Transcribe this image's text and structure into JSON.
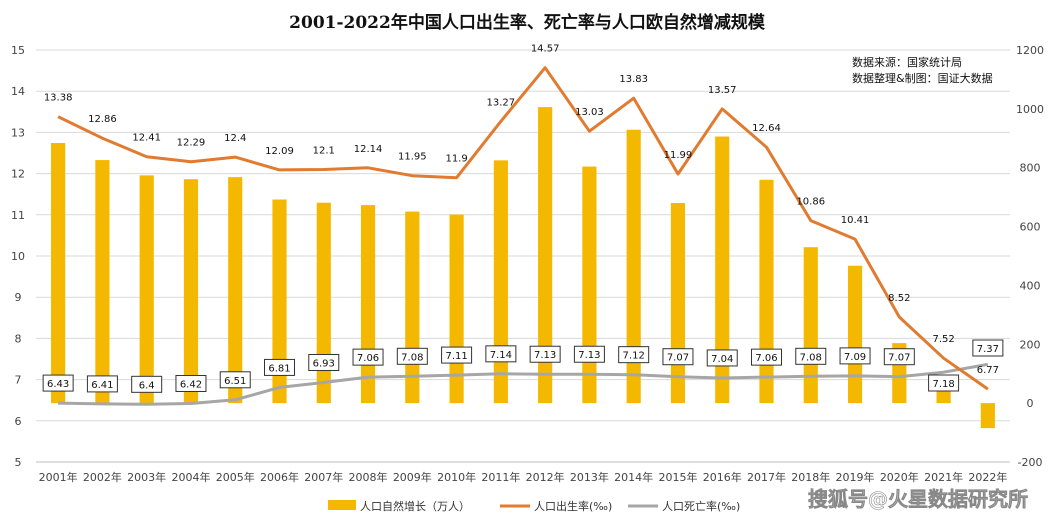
{
  "chart_data": {
    "type": "bar",
    "title": "2001-2022年中国人口出生率、死亡率与人口欧自然增减规模",
    "notes": [
      "数据来源：国家统计局",
      "数据整理&制图：国证大数据"
    ],
    "categories": [
      "2001年",
      "2002年",
      "2003年",
      "2004年",
      "2005年",
      "2006年",
      "2007年",
      "2008年",
      "2009年",
      "2010年",
      "2011年",
      "2012年",
      "2013年",
      "2014年",
      "2015年",
      "2016年",
      "2017年",
      "2018年",
      "2019年",
      "2020年",
      "2021年",
      "2022年"
    ],
    "series": [
      {
        "name": "人口自然增长（万人）",
        "kind": "bar",
        "axis": "right",
        "color": "#F5B800",
        "values": [
          884,
          826,
          774,
          761,
          768,
          692,
          681,
          673,
          651,
          641,
          825,
          1006,
          804,
          929,
          680,
          906,
          759,
          530,
          467,
          204,
          48,
          -85
        ]
      },
      {
        "name": "人口出生率(‰)",
        "kind": "line",
        "axis": "left",
        "color": "#E07B30",
        "values": [
          13.38,
          12.86,
          12.41,
          12.29,
          12.4,
          12.09,
          12.1,
          12.14,
          11.95,
          11.9,
          13.27,
          14.57,
          13.03,
          13.83,
          11.99,
          13.57,
          12.64,
          10.86,
          10.41,
          8.52,
          7.52,
          6.77
        ],
        "labels": [
          "13.38",
          "12.86",
          "12.41",
          "12.29",
          "12.4",
          "12.09",
          "12.1",
          "12.14",
          "11.95",
          "11.9",
          "13.27",
          "14.57",
          "13.03",
          "13.83",
          "11.99",
          "13.57",
          "12.64",
          "10.86",
          "10.41",
          "8.52",
          "7.52",
          "6.77"
        ]
      },
      {
        "name": "人口死亡率(‰)",
        "kind": "line",
        "axis": "left",
        "color": "#A6A6A6",
        "values": [
          6.43,
          6.41,
          6.4,
          6.42,
          6.51,
          6.81,
          6.93,
          7.06,
          7.08,
          7.11,
          7.14,
          7.13,
          7.13,
          7.12,
          7.07,
          7.04,
          7.06,
          7.08,
          7.09,
          7.07,
          7.18,
          7.37
        ],
        "labels": [
          "6.43",
          "6.41",
          "6.4",
          "6.42",
          "6.51",
          "6.81",
          "6.93",
          "7.06",
          "7.08",
          "7.11",
          "7.14",
          "7.13",
          "7.13",
          "7.12",
          "7.07",
          "7.04",
          "7.06",
          "7.08",
          "7.09",
          "7.07",
          "7.18",
          "7.37"
        ]
      }
    ],
    "y_left": {
      "ticks": [
        "5",
        "6",
        "7",
        "8",
        "9",
        "10",
        "11",
        "12",
        "13",
        "14",
        "15"
      ],
      "ylim": [
        5,
        15
      ]
    },
    "y_right": {
      "ticks": [
        "-200",
        "0",
        "200",
        "400",
        "600",
        "800",
        "1000",
        "1200"
      ],
      "ylim": [
        -200,
        1200
      ]
    },
    "grid": true,
    "legend_position": "bottom"
  },
  "watermark": "搜狐号@火星数据研究所"
}
